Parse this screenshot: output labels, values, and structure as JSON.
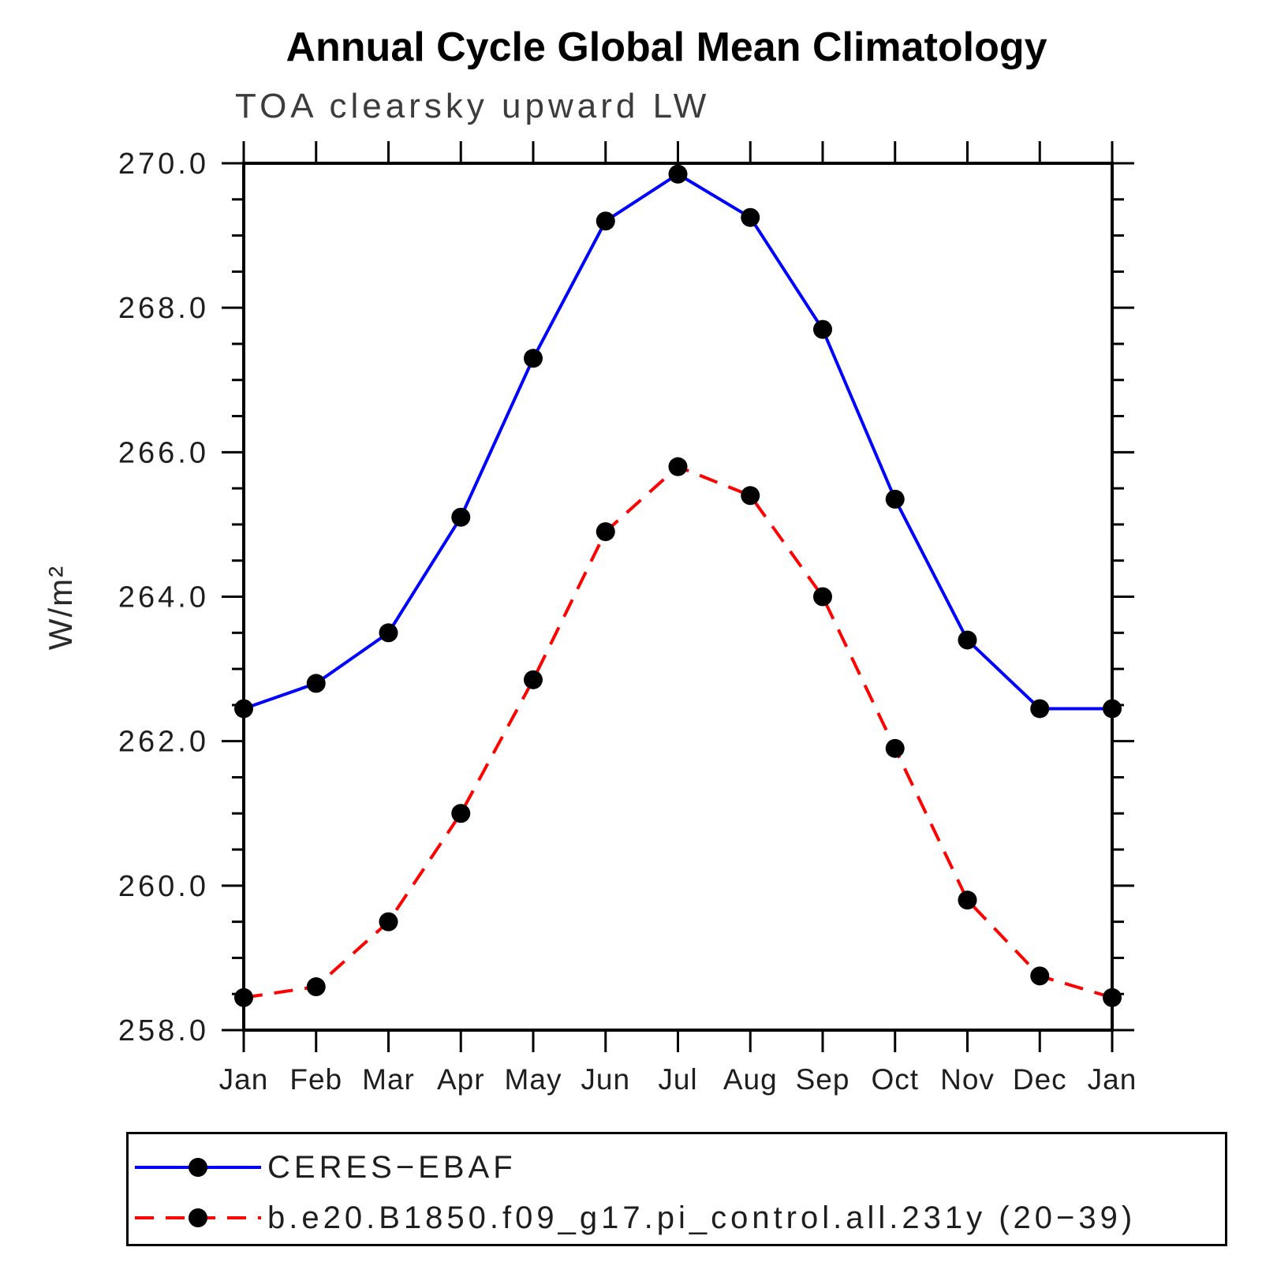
{
  "header": {
    "title": "Annual Cycle Global Mean Climatology",
    "subtitle": "TOA clearsky upward LW"
  },
  "chart_data": {
    "type": "line",
    "title": "Annual Cycle Global Mean Climatology",
    "subtitle": "TOA clearsky upward LW",
    "xlabel": "",
    "ylabel": "W/m²",
    "ylim": [
      258.0,
      270.0
    ],
    "y_major_step": 2.0,
    "y_minor_step": 0.5,
    "y_tick_labels": [
      "258.0",
      "260.0",
      "262.0",
      "264.0",
      "266.0",
      "268.0",
      "270.0"
    ],
    "grid": false,
    "legend_position": "bottom-left-box",
    "axis_color": "#000000",
    "marker_color": "#000000",
    "categories": [
      "Jan",
      "Feb",
      "Mar",
      "Apr",
      "May",
      "Jun",
      "Jul",
      "Aug",
      "Sep",
      "Oct",
      "Nov",
      "Dec",
      "Jan"
    ],
    "series": [
      {
        "name": "CERES−EBAF",
        "color": "#0000ff",
        "style": "solid",
        "marker": "filled-circle",
        "values": [
          262.45,
          262.8,
          263.5,
          265.1,
          267.3,
          269.2,
          269.85,
          269.25,
          267.7,
          265.35,
          263.4,
          262.45,
          262.45
        ]
      },
      {
        "name": "b.e20.B1850.f09_g17.pi_control.all.231y (20−39)",
        "color": "#ff0000",
        "style": "dashed",
        "marker": "filled-circle",
        "values": [
          258.45,
          258.6,
          259.5,
          261.0,
          262.85,
          264.9,
          265.8,
          265.4,
          264.0,
          261.9,
          259.8,
          258.75,
          258.45
        ]
      }
    ]
  }
}
